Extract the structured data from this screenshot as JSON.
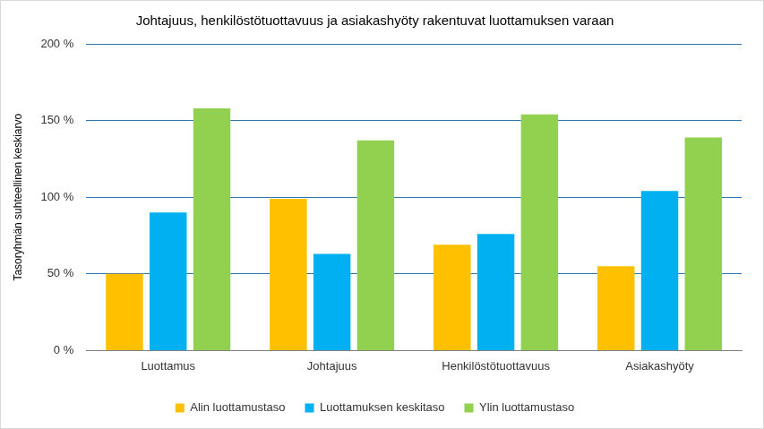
{
  "chart_data": {
    "type": "bar",
    "title": "Johtajuus, henkilöstötuottavuus ja asiakashyöty rakentuvat luottamuksen varaan",
    "y_label": "Tasoryhmän suhteellinen keskiarvo",
    "categories": [
      "Luottamus",
      "Johtajuus",
      "Henkilöstötuottavuus",
      "Asiakashyöty"
    ],
    "series": [
      {
        "name": "Alin luottamustaso",
        "color": "#FFC000",
        "values": [
          50,
          99,
          69,
          55
        ]
      },
      {
        "name": "Luottamuksen keskitaso",
        "color": "#00B0F0",
        "values": [
          90,
          63,
          76,
          104
        ]
      },
      {
        "name": "Ylin luottamustaso",
        "color": "#92D050",
        "values": [
          158,
          137,
          154,
          139
        ]
      }
    ],
    "ylim": [
      0,
      200
    ],
    "yticks": [
      {
        "value": 0,
        "label": "0 %"
      },
      {
        "value": 50,
        "label": "50 %"
      },
      {
        "value": 100,
        "label": "100 %"
      },
      {
        "value": 150,
        "label": "150 %"
      },
      {
        "value": 200,
        "label": "200 %"
      }
    ],
    "grid": true,
    "legend": "bottom"
  }
}
